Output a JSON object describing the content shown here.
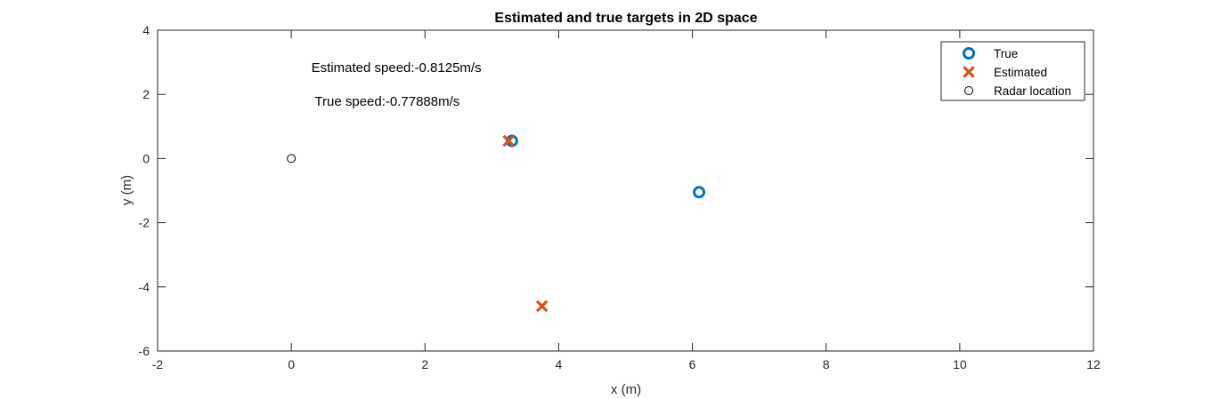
{
  "chart_data": {
    "type": "scatter",
    "title": "Estimated and true targets in 2D space",
    "xlabel": "x (m)",
    "ylabel": "y (m)",
    "xlim": [
      -2,
      12
    ],
    "ylim": [
      -6,
      4
    ],
    "xticks": [
      -2,
      0,
      2,
      4,
      6,
      8,
      10,
      12
    ],
    "yticks": [
      -6,
      -4,
      -2,
      0,
      2,
      4
    ],
    "grid": false,
    "legend_position": "top-right",
    "annotations": [
      {
        "text": "Estimated speed:-0.8125m/s",
        "x": 0.3,
        "y": 2.7
      },
      {
        "text": "True speed:-0.77888m/s",
        "x": 0.35,
        "y": 1.65
      }
    ],
    "series": [
      {
        "name": "True",
        "marker": "circle-thick",
        "color": "#0072BD",
        "points": [
          {
            "x": 3.3,
            "y": 0.55
          },
          {
            "x": 6.1,
            "y": -1.05
          }
        ]
      },
      {
        "name": "Estimated",
        "marker": "x-thick",
        "color": "#D95319",
        "points": [
          {
            "x": 3.25,
            "y": 0.55
          },
          {
            "x": 3.75,
            "y": -4.6
          }
        ]
      },
      {
        "name": "Radar location",
        "marker": "circle-thin",
        "color": "#000000",
        "points": [
          {
            "x": 0,
            "y": 0
          }
        ]
      }
    ]
  }
}
